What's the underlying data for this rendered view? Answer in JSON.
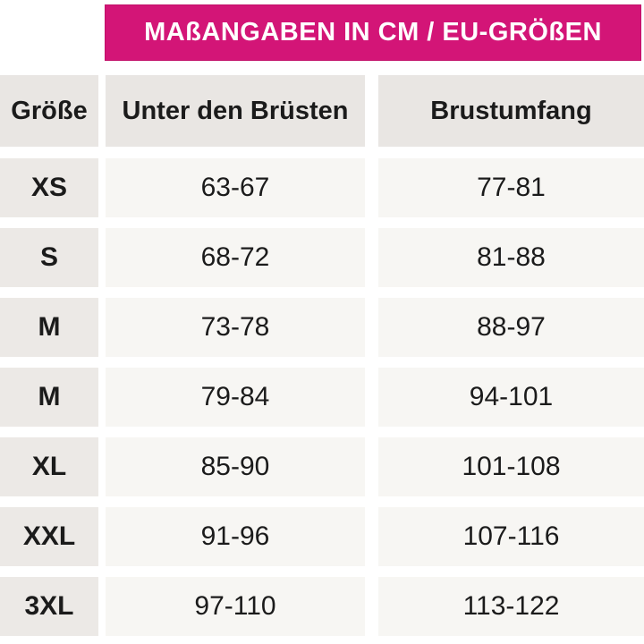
{
  "title": "MAßANGABEN IN CM / EU-GRÖßEN",
  "colors": {
    "accent_pink": "#D31577",
    "header_cell_bg": "#E9E6E3",
    "size_cell_bg": "#ECE9E6",
    "data_cell_bg": "#F7F6F3",
    "text": "#1b1b1b",
    "title_text": "#ffffff"
  },
  "chart_data": {
    "type": "table",
    "title": "MAßANGABEN IN CM / EU-GRÖßEN",
    "columns": [
      "Größe",
      "Unter den Brüsten",
      "Brustumfang"
    ],
    "rows": [
      {
        "size": "XS",
        "underbust": "63-67",
        "bust": "77-81"
      },
      {
        "size": "S",
        "underbust": "68-72",
        "bust": "81-88"
      },
      {
        "size": "M",
        "underbust": "73-78",
        "bust": "88-97"
      },
      {
        "size": "M",
        "underbust": "79-84",
        "bust": "94-101"
      },
      {
        "size": "XL",
        "underbust": "85-90",
        "bust": "101-108"
      },
      {
        "size": "XXL",
        "underbust": "91-96",
        "bust": "107-116"
      },
      {
        "size": "3XL",
        "underbust": "97-110",
        "bust": "113-122"
      }
    ]
  }
}
